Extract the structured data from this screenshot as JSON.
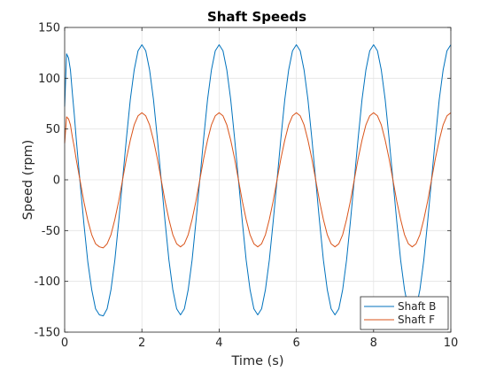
{
  "chart_data": {
    "type": "line",
    "title": "Shaft Speeds",
    "xlabel": "Time (s)",
    "ylabel": "Speed (rpm)",
    "xlim": [
      0,
      10
    ],
    "ylim": [
      -150,
      150
    ],
    "xticks": [
      0,
      2,
      4,
      6,
      8,
      10
    ],
    "yticks": [
      -150,
      -100,
      -50,
      0,
      50,
      100,
      150
    ],
    "xtick_labels": [
      "0",
      "2",
      "4",
      "6",
      "8",
      "10"
    ],
    "ytick_labels": [
      "-150",
      "-100",
      "-50",
      "0",
      "50",
      "100",
      "150"
    ],
    "grid": true,
    "legend_position": "bottom-right",
    "series": [
      {
        "name": "Shaft B",
        "color": "#0072BD",
        "x": [
          0,
          0.05,
          0.1,
          0.15,
          0.2,
          0.25,
          0.3,
          0.4,
          0.5,
          0.6,
          0.7,
          0.8,
          0.9,
          1.0,
          1.1,
          1.2,
          1.3,
          1.4,
          1.5,
          1.6,
          1.7,
          1.8,
          1.9,
          2.0,
          2.1,
          2.2,
          2.3,
          2.4,
          2.5,
          2.6,
          2.7,
          2.8,
          2.9,
          3.0,
          3.1,
          3.2,
          3.3,
          3.4,
          3.5,
          3.6,
          3.7,
          3.8,
          3.9,
          4.0,
          4.1,
          4.2,
          4.3,
          4.4,
          4.5,
          4.6,
          4.7,
          4.8,
          4.9,
          5.0,
          5.1,
          5.2,
          5.3,
          5.4,
          5.5,
          5.6,
          5.7,
          5.8,
          5.9,
          6.0,
          6.1,
          6.2,
          6.3,
          6.4,
          6.5,
          6.6,
          6.7,
          6.8,
          6.9,
          7.0,
          7.1,
          7.2,
          7.3,
          7.4,
          7.5,
          7.6,
          7.7,
          7.8,
          7.9,
          8.0,
          8.1,
          8.2,
          8.3,
          8.4,
          8.5,
          8.6,
          8.7,
          8.8,
          8.9,
          9.0,
          9.1,
          9.2,
          9.3,
          9.4,
          9.5,
          9.6,
          9.7,
          9.8,
          9.9,
          10.0
        ],
        "values": [
          72,
          124,
          120,
          108,
          85,
          64,
          40,
          -3,
          -44,
          -81,
          -108,
          -127,
          -133,
          -134,
          -127,
          -108,
          -79,
          -41,
          0,
          41,
          79,
          108,
          127,
          133,
          127,
          108,
          79,
          41,
          0,
          -41,
          -79,
          -108,
          -127,
          -133,
          -127,
          -108,
          -79,
          -41,
          0,
          41,
          79,
          108,
          127,
          133,
          127,
          108,
          79,
          41,
          0,
          -41,
          -79,
          -108,
          -127,
          -133,
          -127,
          -108,
          -79,
          -41,
          0,
          41,
          79,
          108,
          127,
          133,
          127,
          108,
          79,
          41,
          0,
          -41,
          -79,
          -108,
          -127,
          -133,
          -127,
          -108,
          -79,
          -41,
          0,
          41,
          79,
          108,
          127,
          133,
          127,
          108,
          79,
          41,
          0,
          -41,
          -79,
          -108,
          -127,
          -133,
          -127,
          -108,
          -79,
          -41,
          0,
          41,
          79,
          108,
          127,
          133
        ]
      },
      {
        "name": "Shaft F",
        "color": "#D95319",
        "x": [
          0,
          0.05,
          0.1,
          0.15,
          0.2,
          0.25,
          0.3,
          0.4,
          0.5,
          0.6,
          0.7,
          0.8,
          0.9,
          1.0,
          1.1,
          1.2,
          1.3,
          1.4,
          1.5,
          1.6,
          1.7,
          1.8,
          1.9,
          2.0,
          2.1,
          2.2,
          2.3,
          2.4,
          2.5,
          2.6,
          2.7,
          2.8,
          2.9,
          3.0,
          3.1,
          3.2,
          3.3,
          3.4,
          3.5,
          3.6,
          3.7,
          3.8,
          3.9,
          4.0,
          4.1,
          4.2,
          4.3,
          4.4,
          4.5,
          4.6,
          4.7,
          4.8,
          4.9,
          5.0,
          5.1,
          5.2,
          5.3,
          5.4,
          5.5,
          5.6,
          5.7,
          5.8,
          5.9,
          6.0,
          6.1,
          6.2,
          6.3,
          6.4,
          6.5,
          6.6,
          6.7,
          6.8,
          6.9,
          7.0,
          7.1,
          7.2,
          7.3,
          7.4,
          7.5,
          7.6,
          7.7,
          7.8,
          7.9,
          8.0,
          8.1,
          8.2,
          8.3,
          8.4,
          8.5,
          8.6,
          8.7,
          8.8,
          8.9,
          9.0,
          9.1,
          9.2,
          9.3,
          9.4,
          9.5,
          9.6,
          9.7,
          9.8,
          9.9,
          10.0
        ],
        "values": [
          36,
          62,
          60,
          54,
          42,
          32,
          20,
          -1,
          -22,
          -40,
          -54,
          -63,
          -66,
          -67,
          -63,
          -54,
          -39,
          -21,
          0,
          21,
          39,
          54,
          63,
          66,
          63,
          54,
          39,
          21,
          0,
          -21,
          -39,
          -54,
          -63,
          -66,
          -63,
          -54,
          -39,
          -21,
          0,
          21,
          39,
          54,
          63,
          66,
          63,
          54,
          39,
          21,
          0,
          -21,
          -39,
          -54,
          -63,
          -66,
          -63,
          -54,
          -39,
          -21,
          0,
          21,
          39,
          54,
          63,
          66,
          63,
          54,
          39,
          21,
          0,
          -21,
          -39,
          -54,
          -63,
          -66,
          -63,
          -54,
          -39,
          -21,
          0,
          21,
          39,
          54,
          63,
          66,
          63,
          54,
          39,
          21,
          0,
          -21,
          -39,
          -54,
          -63,
          -66,
          -63,
          -54,
          -39,
          -21,
          0,
          21,
          39,
          54,
          63,
          66
        ]
      }
    ]
  }
}
